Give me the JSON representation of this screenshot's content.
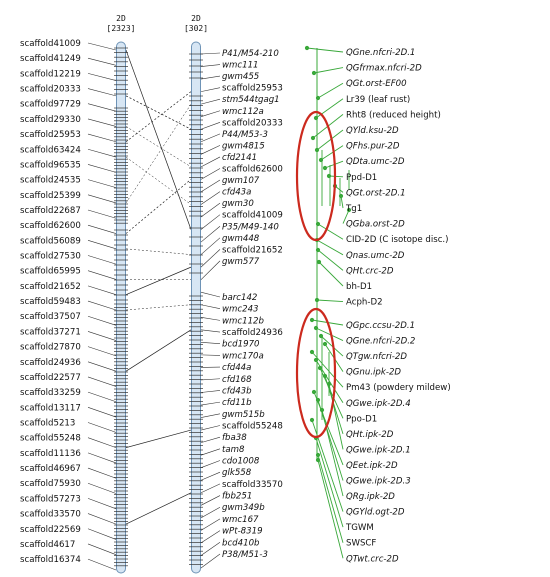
{
  "map1": {
    "name": "2D",
    "count": "[2323]",
    "markers": [
      "scaffold41009",
      "scaffold41249",
      "scaffold12219",
      "scaffold20333",
      "scaffold97729",
      "scaffold29330",
      "scaffold25953",
      "scaffold63424",
      "scaffold96535",
      "scaffold24535",
      "scaffold25399",
      "scaffold22687",
      "scaffold62600",
      "scaffold56089",
      "scaffold27530",
      "scaffold65995",
      "scaffold21652",
      "scaffold59483",
      "scaffold37507",
      "scaffold37271",
      "scaffold27870",
      "scaffold24936",
      "scaffold22577",
      "scaffold33259",
      "scaffold13117",
      "scaffold5213",
      "scaffold55248",
      "scaffold11136",
      "scaffold46967",
      "scaffold75930",
      "scaffold57273",
      "scaffold33570",
      "scaffold22569",
      "scaffold4617",
      "scaffold16374"
    ]
  },
  "map2": {
    "name": "2D",
    "count": "[302]",
    "markers": [
      "P41/M54-210",
      "wmc111",
      "gwm455",
      "scaffold25953",
      "stm544tgag1",
      "wmc112a",
      "scaffold20333",
      "P44/M53-3",
      "gwm4815",
      "cfd2141",
      "scaffold62600",
      "gwm107",
      "cfd43a",
      "gwm30",
      "scaffold41009",
      "P35/M49-140",
      "gwm448",
      "scaffold21652",
      "gwm577",
      "barc142",
      "wmc243",
      "wmc112b",
      "scaffold24936",
      "bcd1970",
      "wmc170a",
      "cfd44a",
      "cfd168",
      "cfd43b",
      "cfd11b",
      "gwm515b",
      "scaffold55248",
      "fba38",
      "tam8",
      "cdo1008",
      "glk558",
      "scaffold33570",
      "fbb251",
      "gwm349b",
      "wmc167",
      "wPt-8319",
      "bcd410b",
      "P38/M51-3"
    ]
  },
  "traits": [
    "QGne.nfcri-2D.1",
    "QGfrmax.nfcri-2D",
    "QGt.orst-EF00",
    "Lr39 (leaf rust)",
    "Rht8 (reduced height)",
    "QYld.ksu-2D",
    "QFhs.pur-2D",
    "QDta.umc-2D",
    "Ppd-D1",
    "QGt.orst-2D.1",
    "Tg1",
    "QGba.orst-2D",
    "CID-2D (C isotope disc.)",
    "Qnas.umc-2D",
    "QHt.crc-2D",
    "bh-D1",
    "Acph-D2",
    "QGpc.ccsu-2D.1",
    "QGne.nfcri-2D.2",
    "QTgw.nfcri-2D",
    "QGnu.ipk-2D",
    "Pm43 (powdery mildew)",
    "QGwe.ipk-2D.4",
    "Ppo-D1",
    "QHt.ipk-2D",
    "QGwe.ipk-2D.1",
    "QEet.ipk-2D",
    "QGwe.ipk-2D.3",
    "QRg.ipk-2D",
    "QGYld.ogt-2D",
    "TGWM",
    "SWSCF",
    "QTwt.crc-2D"
  ],
  "colors": {
    "chromosome_fill": "#d7e6f4",
    "chromosome_stroke": "#6e93b6",
    "trait_lines": "#39a83a",
    "highlight_ellipse": "#cc2a1e",
    "connector": "#222222"
  }
}
